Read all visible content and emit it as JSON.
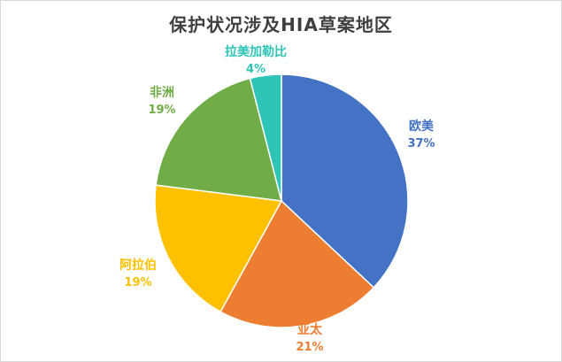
{
  "chart_data": {
    "type": "pie",
    "title": "保护状况涉及HIA草案地区",
    "slices": [
      {
        "name": "欧美",
        "value": 37,
        "label": "37%",
        "color": "#4472C4"
      },
      {
        "name": "亚太",
        "value": 21,
        "label": "21%",
        "color": "#ED7D31"
      },
      {
        "name": "阿拉伯",
        "value": 19,
        "label": "19%",
        "color": "#FFC000"
      },
      {
        "name": "非洲",
        "value": 19,
        "label": "19%",
        "color": "#70AD47"
      },
      {
        "name": "拉美加勒比",
        "value": 4,
        "label": "4%",
        "color": "#2EC4B6"
      }
    ],
    "legend": "none",
    "start_angle": "12 o'clock, clockwise"
  }
}
